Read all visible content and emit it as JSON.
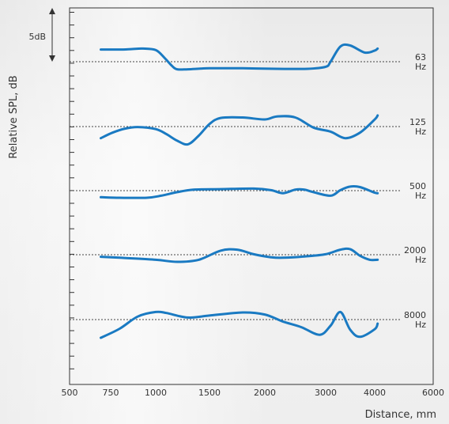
{
  "chart_data": {
    "type": "line",
    "title": "",
    "xlabel": "Distance, mm",
    "ylabel": "Relative SPL, dB",
    "scale_label": "5dB",
    "x_tick_labels": [
      "500",
      "750",
      "1000",
      "1500",
      "2000",
      "3000",
      "4000",
      "6000"
    ],
    "x_tick_values": [
      500,
      750,
      1000,
      1500,
      2000,
      3000,
      4000,
      6000
    ],
    "line_color": "#1a7ac2",
    "series": [
      {
        "name": "63 Hz",
        "label_top": "63",
        "label_bottom": "Hz",
        "x": [
          690,
          760,
          820,
          870,
          930,
          1000,
          1080,
          1150,
          1200,
          1300,
          1500,
          1800,
          2200,
          2700,
          3000,
          3100,
          3300,
          3500,
          3800,
          4000,
          4100
        ],
        "y": [
          2.4,
          2.4,
          2.4,
          2.5,
          2.6,
          2.3,
          0.8,
          -0.8,
          -1.5,
          -1.5,
          -1.3,
          -1.3,
          -1.4,
          -1.4,
          -1.0,
          0,
          3.0,
          3.2,
          1.8,
          2.2,
          2.6
        ]
      },
      {
        "name": "125 Hz",
        "label_top": "125",
        "label_bottom": "Hz",
        "x": [
          690,
          760,
          830,
          900,
          1000,
          1100,
          1200,
          1300,
          1400,
          1500,
          1600,
          1800,
          2000,
          2200,
          2500,
          2800,
          3100,
          3400,
          3700,
          4000,
          4100
        ],
        "y": [
          -2.3,
          -1.2,
          -0.4,
          -0.1,
          -0.5,
          -1.5,
          -2.8,
          -3.5,
          -1.8,
          0.5,
          1.7,
          1.8,
          1.4,
          2.0,
          1.8,
          -0.2,
          -1.0,
          -2.3,
          -1.2,
          1.4,
          2.2
        ]
      },
      {
        "name": "500 Hz",
        "label_top": "500",
        "label_bottom": "Hz",
        "x": [
          690,
          800,
          950,
          1050,
          1200,
          1350,
          1600,
          1900,
          2100,
          2300,
          2500,
          2650,
          2800,
          3100,
          3300,
          3500,
          3700,
          4000,
          4100
        ],
        "y": [
          -1.3,
          -1.4,
          -1.4,
          -1.0,
          -0.3,
          0.2,
          0.3,
          0.4,
          0.1,
          -0.5,
          0.2,
          0.2,
          -0.3,
          -1.0,
          0.1,
          0.8,
          0.7,
          -0.4,
          -0.5
        ]
      },
      {
        "name": "2000 Hz",
        "label_top": "2000",
        "label_bottom": "Hz",
        "x": [
          690,
          800,
          1000,
          1200,
          1400,
          1600,
          1750,
          1900,
          2100,
          2300,
          2700,
          3000,
          3300,
          3500,
          3700,
          3900,
          4100
        ],
        "y": [
          -0.4,
          -0.6,
          -1.0,
          -1.4,
          -1.0,
          0.8,
          1.0,
          0.1,
          -0.5,
          -0.6,
          -0.3,
          0.1,
          1.0,
          1.1,
          -0.2,
          -1.0,
          -1.0
        ]
      },
      {
        "name": "8000 Hz",
        "label_top": "8000",
        "label_bottom": "Hz",
        "x": [
          690,
          800,
          900,
          1000,
          1100,
          1300,
          1500,
          1800,
          2000,
          2300,
          2600,
          2900,
          3100,
          3300,
          3500,
          3700,
          4000,
          4100
        ],
        "y": [
          -3.6,
          -1.8,
          0.6,
          1.5,
          1.3,
          0.4,
          0.8,
          1.4,
          1.0,
          -0.4,
          -1.5,
          -3.0,
          -1.2,
          1.5,
          -2.0,
          -3.4,
          -1.9,
          -0.8
        ]
      }
    ],
    "x_range": [
      500,
      6000
    ],
    "grid": false,
    "reference_lines": "dotted"
  }
}
